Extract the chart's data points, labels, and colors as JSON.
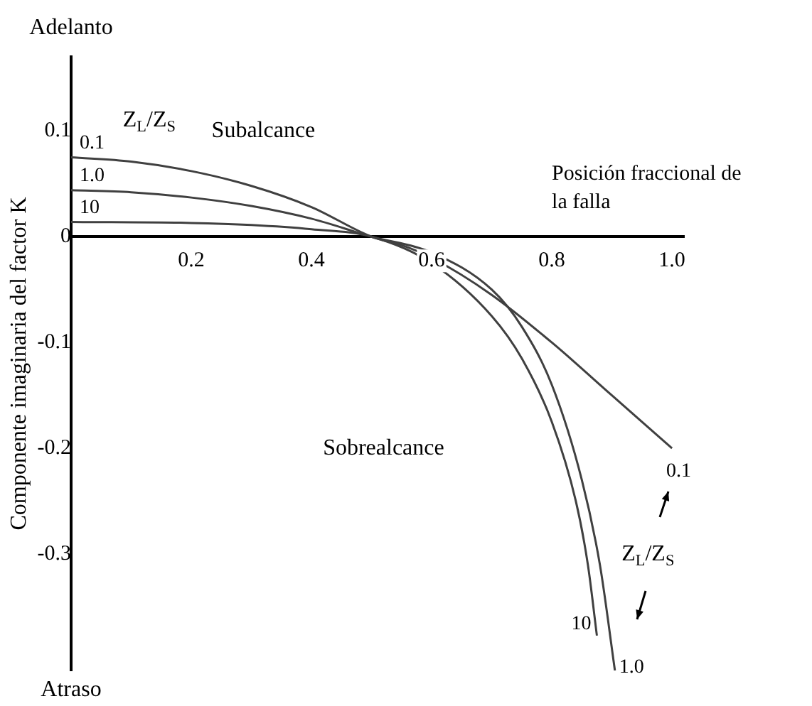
{
  "chart_data": {
    "type": "line",
    "xlabel": "Posición fraccional de la falla",
    "ylabel": "Componente imaginaria del factor K",
    "xlim": [
      0,
      1.02
    ],
    "ylim": [
      -0.41,
      0.17
    ],
    "xticks": [
      0.2,
      0.4,
      0.6,
      0.8,
      {
        "value": 1,
        "label": "1.0"
      }
    ],
    "yticks": [
      0.1,
      0,
      -0.1,
      -0.2,
      -0.3
    ],
    "grid": false,
    "legend": false,
    "marker": "none",
    "line_style": "solid",
    "series": [
      {
        "name": "0.1",
        "color": "#404040",
        "x": [
          0,
          0.1,
          0.2,
          0.3,
          0.4,
          0.5,
          0.55,
          0.6,
          0.7,
          0.8,
          0.9,
          1.0
        ],
        "values": [
          0.075,
          0.071,
          0.062,
          0.048,
          0.028,
          0,
          -0.008,
          -0.02,
          -0.055,
          -0.1,
          -0.15,
          -0.2
        ]
      },
      {
        "name": "1.0",
        "color": "#404040",
        "x": [
          0,
          0.1,
          0.2,
          0.3,
          0.4,
          0.5,
          0.6,
          0.7,
          0.75,
          0.8,
          0.85,
          0.88,
          0.905
        ],
        "values": [
          0.044,
          0.042,
          0.037,
          0.029,
          0.017,
          0,
          -0.015,
          -0.05,
          -0.085,
          -0.14,
          -0.23,
          -0.31,
          -0.41
        ]
      },
      {
        "name": "10",
        "color": "#404040",
        "x": [
          0,
          0.2,
          0.3,
          0.4,
          0.5,
          0.6,
          0.7,
          0.75,
          0.8,
          0.84,
          0.86,
          0.875
        ],
        "values": [
          0.014,
          0.013,
          0.011,
          0.007,
          0,
          -0.025,
          -0.075,
          -0.115,
          -0.175,
          -0.25,
          -0.31,
          -0.377
        ]
      }
    ],
    "annotations": [
      "Adelanto",
      "Atraso",
      "Subalcance",
      "Sobrealcance",
      "Z$_{L}$/Z$_{S}$",
      "Z$_{L}$/Z$_{S}$"
    ]
  }
}
